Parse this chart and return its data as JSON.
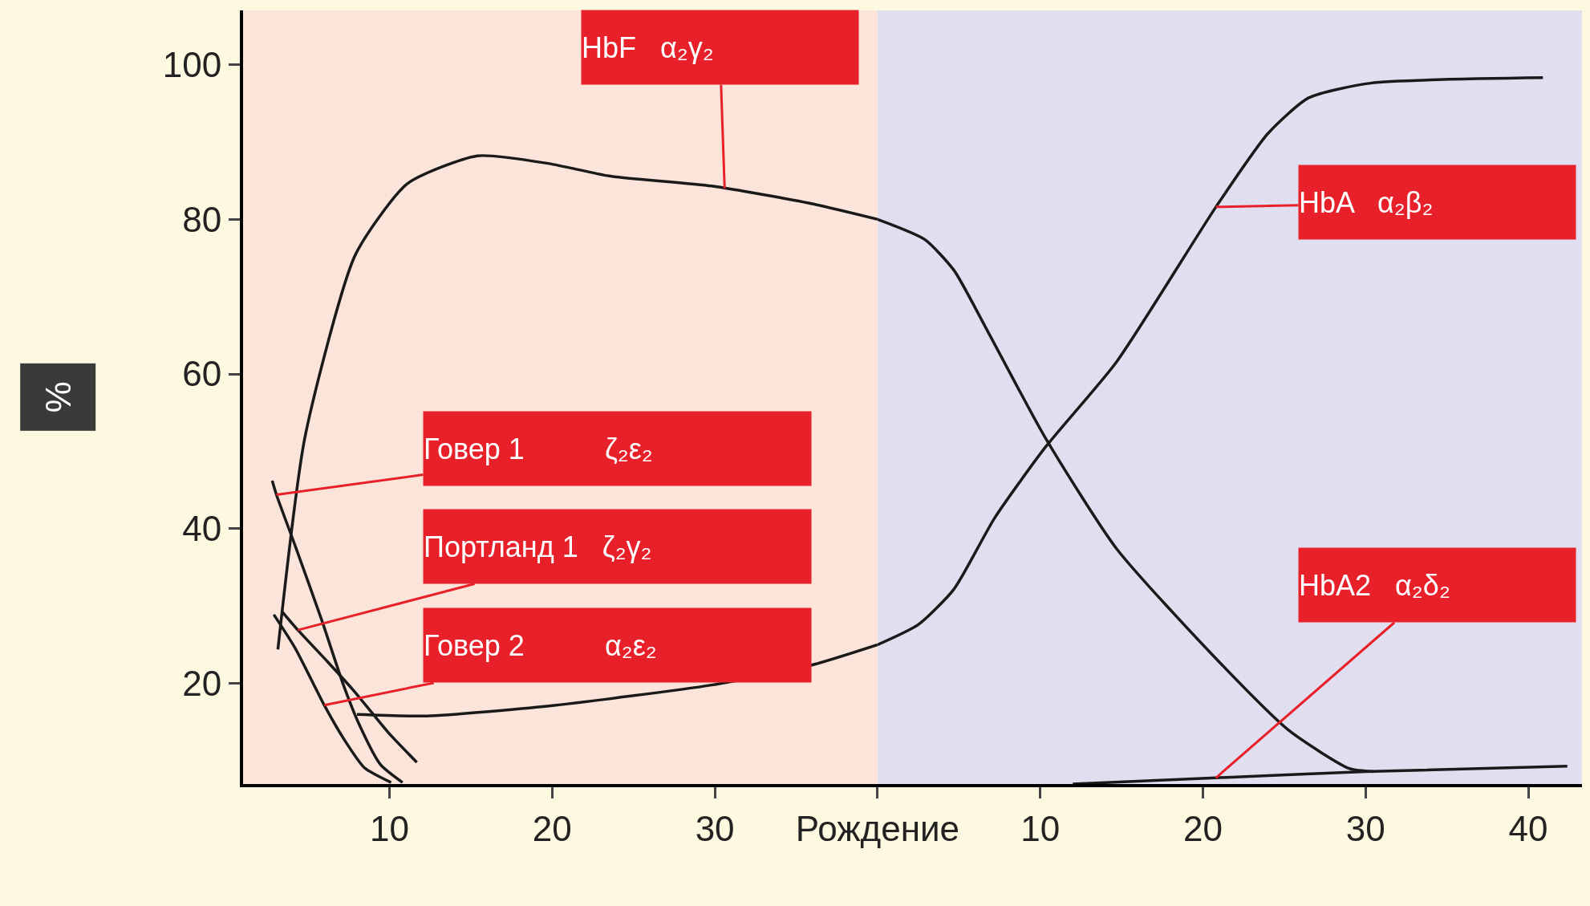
{
  "chart_data": [
    {
      "type": "line",
      "ylabel": "%",
      "xlim": [
        1,
        40
      ],
      "ylim": [
        7,
        107
      ],
      "xticks": [
        10,
        20,
        30,
        {
          "value": 40,
          "label": "Рождение"
        }
      ],
      "yticks": [
        20,
        40,
        60,
        80,
        100
      ],
      "marker": "none",
      "line_style": "solid",
      "bands": [
        {
          "axis": "x",
          "from": 1,
          "to": 40,
          "color": "#fbe4da"
        }
      ],
      "series": [
        {
          "color": "#1a1a1a",
          "x": [
            3.14,
            4.8,
            7.9,
            11.1,
            15.4,
            19.8,
            23.5,
            29.8,
            36,
            40
          ],
          "values": [
            24.4,
            51.8,
            75.4,
            84.6,
            88.2,
            87.2,
            85.6,
            84.3,
            82,
            80
          ]
        },
        {
          "color": "#1a1a1a",
          "x": [
            8,
            12.3,
            19.8,
            29.8,
            36,
            40
          ],
          "values": [
            16,
            15.8,
            17.1,
            19.8,
            22.4,
            25
          ]
        },
        {
          "color": "#1a1a1a",
          "x": [
            2.79,
            3.05,
            4.22,
            5.85,
            7.17,
            8.16,
            9.45,
            10.8
          ],
          "values": [
            46.2,
            44.4,
            37.7,
            28.1,
            19.8,
            14.6,
            9.5,
            7.2
          ]
        },
        {
          "color": "#1a1a1a",
          "x": [
            3.39,
            4.37,
            6.2,
            7.83,
            9.95,
            11.68
          ],
          "values": [
            29.3,
            26.9,
            22.8,
            19,
            13.6,
            9.8
          ]
        },
        {
          "color": "#1a1a1a",
          "x": [
            2.89,
            4.22,
            5.99,
            7.17,
            8.46,
            10.1
          ],
          "values": [
            28.9,
            24.5,
            17.2,
            12.9,
            9.1,
            7.2
          ]
        }
      ],
      "annotations": [
        {
          "text": "HbF   α₂γ₂",
          "x": 30.6,
          "y": 84
        },
        {
          "text": "Говер 1          ζ₂ε₂",
          "x": 3.05,
          "y": 44.4
        },
        {
          "text": "Портланд 1   ζ₂γ₂",
          "x": 4.37,
          "y": 26.9
        },
        {
          "text": "Говер 2          α₂ε₂",
          "x": 5.99,
          "y": 17.2
        }
      ]
    },
    {
      "type": "line",
      "tick_labels": "x",
      "xlim": [
        0,
        43.3
      ],
      "ylim": [
        7,
        107
      ],
      "xticks": [
        10,
        20,
        30,
        40
      ],
      "marker": "none",
      "line_style": "solid",
      "bands": [
        {
          "axis": "x",
          "from": 0,
          "to": 43.3,
          "color": "#e0deef"
        }
      ],
      "series": [
        {
          "color": "#1a1a1a",
          "x": [
            0,
            2.9,
            4.7,
            6.6,
            10.3,
            14.7,
            20.9,
            25.3,
            29,
            30.5
          ],
          "values": [
            80,
            77.4,
            73.4,
            66.2,
            51.8,
            37.4,
            23,
            13.9,
            9,
            8.6
          ]
        },
        {
          "color": "#1a1a1a",
          "x": [
            0,
            2.5,
            4.7,
            7.2,
            10.3,
            14.7,
            20.8,
            24,
            26.5,
            30.3,
            40.9
          ],
          "values": [
            25,
            27.6,
            32.2,
            41.4,
            50.5,
            61.6,
            81.6,
            91.1,
            95.7,
            97.6,
            98.3
          ]
        },
        {
          "color": "#1a1a1a",
          "x": [
            12,
            20.8,
            30,
            42.4
          ],
          "values": [
            7,
            7.8,
            8.6,
            9.3
          ]
        }
      ],
      "annotations": [
        {
          "text": "HbA   α₂β₂",
          "x": 20.8,
          "y": 81.6
        },
        {
          "text": "HbA2   α₂δ₂",
          "x": 20.8,
          "y": 7.8
        }
      ]
    }
  ]
}
